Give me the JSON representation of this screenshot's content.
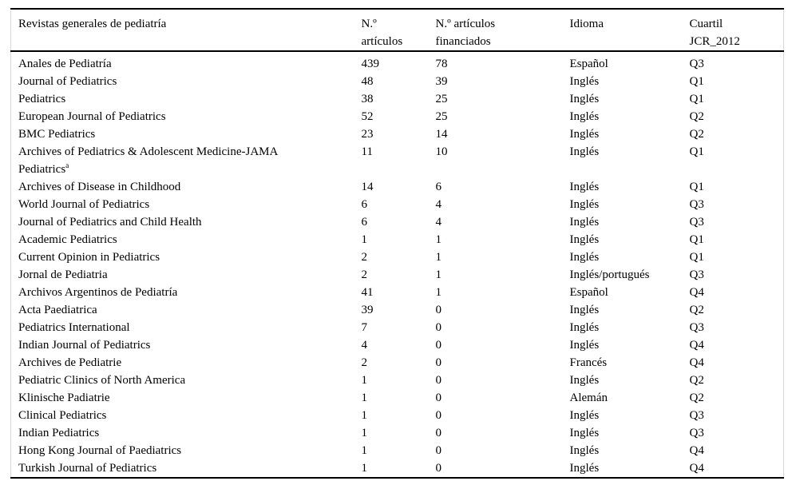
{
  "colors": {
    "background": "#ffffff",
    "text": "#000000",
    "rule": "#000000",
    "edge_line": "#d9d9d9"
  },
  "table": {
    "columns": [
      {
        "key": "journal",
        "label": "Revistas generales de pediatría",
        "lines": [
          "Revistas generales de pediatría"
        ]
      },
      {
        "key": "articles",
        "label": "N.º artículos",
        "lines": [
          "N.º",
          "artículos"
        ]
      },
      {
        "key": "funded",
        "label": "N.º artículos financiados",
        "lines": [
          "N.º artículos",
          "financiados"
        ]
      },
      {
        "key": "language",
        "label": "Idioma",
        "lines": [
          "Idioma"
        ]
      },
      {
        "key": "quartile",
        "label": "Cuartil JCR_2012",
        "lines": [
          "Cuartil",
          "JCR_2012"
        ]
      }
    ],
    "rows": [
      {
        "journal": "Anales de Pediatría",
        "articles": 439,
        "funded": 78,
        "language": "Español",
        "quartile": "Q3"
      },
      {
        "journal": "Journal of Pediatrics",
        "articles": 48,
        "funded": 39,
        "language": "Inglés",
        "quartile": "Q1"
      },
      {
        "journal": "Pediatrics",
        "articles": 38,
        "funded": 25,
        "language": "Inglés",
        "quartile": "Q1"
      },
      {
        "journal": "European Journal of Pediatrics",
        "articles": 52,
        "funded": 25,
        "language": "Inglés",
        "quartile": "Q2"
      },
      {
        "journal": "BMC Pediatrics",
        "articles": 23,
        "funded": 14,
        "language": "Inglés",
        "quartile": "Q2"
      },
      {
        "journal": "Archives of Pediatrics & Adolescent Medicine-JAMA Pediatrics",
        "journal_lines": [
          "Archives of Pediatrics & Adolescent Medicine-JAMA",
          "Pediatrics"
        ],
        "sup": "a",
        "articles": 11,
        "funded": 10,
        "language": "Inglés",
        "quartile": "Q1"
      },
      {
        "journal": "Archives of Disease in Childhood",
        "articles": 14,
        "funded": 6,
        "language": "Inglés",
        "quartile": "Q1"
      },
      {
        "journal": "World Journal of Pediatrics",
        "articles": 6,
        "funded": 4,
        "language": "Inglés",
        "quartile": "Q3"
      },
      {
        "journal": "Journal of Pediatrics and Child Health",
        "articles": 6,
        "funded": 4,
        "language": "Inglés",
        "quartile": "Q3"
      },
      {
        "journal": "Academic Pediatrics",
        "articles": 1,
        "funded": 1,
        "language": "Inglés",
        "quartile": "Q1"
      },
      {
        "journal": "Current Opinion in Pediatrics",
        "articles": 2,
        "funded": 1,
        "language": "Inglés",
        "quartile": "Q1"
      },
      {
        "journal": "Jornal de Pediatria",
        "articles": 2,
        "funded": 1,
        "language": "Inglés/portugués",
        "quartile": "Q3"
      },
      {
        "journal": "Archivos Argentinos de Pediatría",
        "articles": 41,
        "funded": 1,
        "language": "Español",
        "quartile": "Q4"
      },
      {
        "journal": "Acta Paediatrica",
        "articles": 39,
        "funded": 0,
        "language": "Inglés",
        "quartile": "Q2"
      },
      {
        "journal": "Pediatrics International",
        "articles": 7,
        "funded": 0,
        "language": "Inglés",
        "quartile": "Q3"
      },
      {
        "journal": "Indian Journal of Pediatrics",
        "articles": 4,
        "funded": 0,
        "language": "Inglés",
        "quartile": "Q4"
      },
      {
        "journal": "Archives de Pediatrie",
        "articles": 2,
        "funded": 0,
        "language": "Francés",
        "quartile": "Q4"
      },
      {
        "journal": "Pediatric Clinics of North America",
        "articles": 1,
        "funded": 0,
        "language": "Inglés",
        "quartile": "Q2"
      },
      {
        "journal": "Klinische Padiatrie",
        "articles": 1,
        "funded": 0,
        "language": "Alemán",
        "quartile": "Q2"
      },
      {
        "journal": "Clinical Pediatrics",
        "articles": 1,
        "funded": 0,
        "language": "Inglés",
        "quartile": "Q3"
      },
      {
        "journal": "Indian Pediatrics",
        "articles": 1,
        "funded": 0,
        "language": "Inglés",
        "quartile": "Q3"
      },
      {
        "journal": "Hong Kong Journal of Paediatrics",
        "articles": 1,
        "funded": 0,
        "language": "Inglés",
        "quartile": "Q4"
      },
      {
        "journal": "Turkish Journal of Pediatrics",
        "articles": 1,
        "funded": 0,
        "language": "Inglés",
        "quartile": "Q4"
      }
    ]
  }
}
